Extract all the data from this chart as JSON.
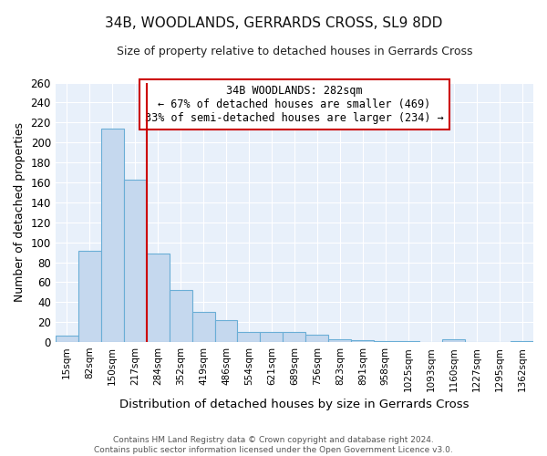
{
  "title": "34B, WOODLANDS, GERRARDS CROSS, SL9 8DD",
  "subtitle": "Size of property relative to detached houses in Gerrards Cross",
  "xlabel": "Distribution of detached houses by size in Gerrards Cross",
  "ylabel": "Number of detached properties",
  "categories": [
    "15sqm",
    "82sqm",
    "150sqm",
    "217sqm",
    "284sqm",
    "352sqm",
    "419sqm",
    "486sqm",
    "554sqm",
    "621sqm",
    "689sqm",
    "756sqm",
    "823sqm",
    "891sqm",
    "958sqm",
    "1025sqm",
    "1093sqm",
    "1160sqm",
    "1227sqm",
    "1295sqm",
    "1362sqm"
  ],
  "values": [
    6,
    91,
    214,
    163,
    89,
    52,
    30,
    22,
    10,
    10,
    10,
    7,
    3,
    2,
    1,
    1,
    0,
    3,
    0,
    0,
    1
  ],
  "bar_color": "#c5d8ee",
  "bar_edge_color": "#6aaed6",
  "vline_x_index": 4,
  "vline_color": "#cc0000",
  "annotation_title": "34B WOODLANDS: 282sqm",
  "annotation_line1": "← 67% of detached houses are smaller (469)",
  "annotation_line2": "33% of semi-detached houses are larger (234) →",
  "annotation_box_color": "#cc0000",
  "ylim": [
    0,
    260
  ],
  "yticks": [
    0,
    20,
    40,
    60,
    80,
    100,
    120,
    140,
    160,
    180,
    200,
    220,
    240,
    260
  ],
  "footer_line1": "Contains HM Land Registry data © Crown copyright and database right 2024.",
  "footer_line2": "Contains public sector information licensed under the Open Government Licence v3.0.",
  "plot_bg_color": "#e8f0fa",
  "fig_bg_color": "#ffffff",
  "grid_color": "#ffffff"
}
